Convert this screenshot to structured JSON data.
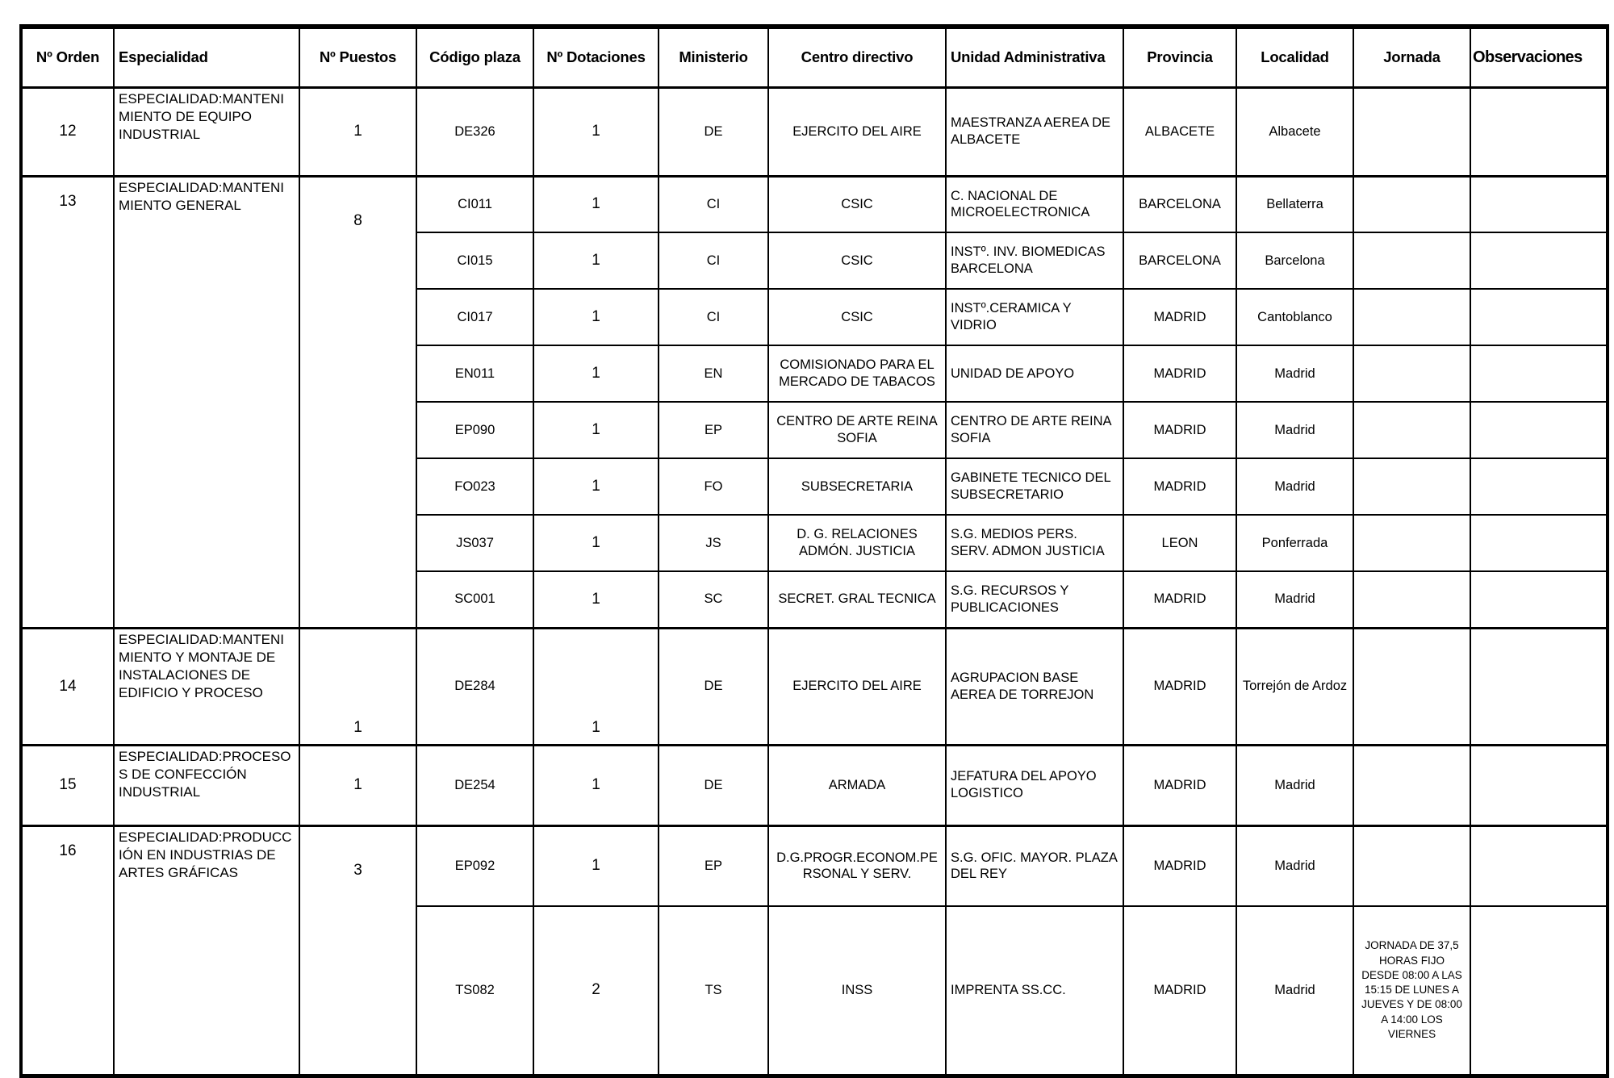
{
  "colors": {
    "border": "#000000",
    "text": "#000000",
    "background": "#ffffff"
  },
  "table": {
    "columns": [
      {
        "key": "orden",
        "label": "Nº Orden"
      },
      {
        "key": "especialidad",
        "label": "Especialidad"
      },
      {
        "key": "puestos",
        "label": "Nº Puestos"
      },
      {
        "key": "codigo",
        "label": "Código plaza"
      },
      {
        "key": "dotaciones",
        "label": "Nº Dotaciones"
      },
      {
        "key": "ministerio",
        "label": "Ministerio"
      },
      {
        "key": "centro",
        "label": "Centro directivo"
      },
      {
        "key": "unidad",
        "label": "Unidad Administrativa"
      },
      {
        "key": "provincia",
        "label": "Provincia"
      },
      {
        "key": "localidad",
        "label": "Localidad"
      },
      {
        "key": "jornada",
        "label": "Jornada"
      },
      {
        "key": "observaciones",
        "label": "Observaciones"
      }
    ],
    "groups": [
      {
        "orden": "12",
        "especialidad": "ESPECIALIDAD:MANTENIMIENTO DE EQUIPO INDUSTRIAL",
        "puestos": "1",
        "rows": [
          {
            "codigo": "DE326",
            "dotaciones": "1",
            "ministerio": "DE",
            "centro": "EJERCITO DEL AIRE",
            "unidad": "MAESTRANZA AEREA DE ALBACETE",
            "provincia": "ALBACETE",
            "localidad": "Albacete",
            "jornada": "",
            "observaciones": ""
          }
        ]
      },
      {
        "orden": "13",
        "especialidad": "ESPECIALIDAD:MANTENIMIENTO GENERAL",
        "puestos": "8",
        "rows": [
          {
            "codigo": "CI011",
            "dotaciones": "1",
            "ministerio": "CI",
            "centro": "CSIC",
            "unidad": "C. NACIONAL DE MICROELECTRONICA",
            "provincia": "BARCELONA",
            "localidad": "Bellaterra",
            "jornada": "",
            "observaciones": ""
          },
          {
            "codigo": "CI015",
            "dotaciones": "1",
            "ministerio": "CI",
            "centro": "CSIC",
            "unidad": "INSTº. INV. BIOMEDICAS BARCELONA",
            "provincia": "BARCELONA",
            "localidad": "Barcelona",
            "jornada": "",
            "observaciones": ""
          },
          {
            "codigo": "CI017",
            "dotaciones": "1",
            "ministerio": "CI",
            "centro": "CSIC",
            "unidad": "INSTº.CERAMICA Y VIDRIO",
            "provincia": "MADRID",
            "localidad": "Cantoblanco",
            "jornada": "",
            "observaciones": ""
          },
          {
            "codigo": "EN011",
            "dotaciones": "1",
            "ministerio": "EN",
            "centro": "COMISIONADO PARA EL MERCADO DE TABACOS",
            "unidad": "UNIDAD DE APOYO",
            "provincia": "MADRID",
            "localidad": "Madrid",
            "jornada": "",
            "observaciones": ""
          },
          {
            "codigo": "EP090",
            "dotaciones": "1",
            "ministerio": "EP",
            "centro": "CENTRO DE ARTE REINA SOFIA",
            "unidad": "CENTRO DE ARTE REINA SOFIA",
            "provincia": "MADRID",
            "localidad": "Madrid",
            "jornada": "",
            "observaciones": ""
          },
          {
            "codigo": "FO023",
            "dotaciones": "1",
            "ministerio": "FO",
            "centro": "SUBSECRETARIA",
            "unidad": "GABINETE TECNICO DEL SUBSECRETARIO",
            "provincia": "MADRID",
            "localidad": "Madrid",
            "jornada": "",
            "observaciones": ""
          },
          {
            "codigo": "JS037",
            "dotaciones": "1",
            "ministerio": "JS",
            "centro": "D. G. RELACIONES ADMÓN. JUSTICIA",
            "unidad": "S.G. MEDIOS PERS. SERV. ADMON JUSTICIA",
            "provincia": "LEON",
            "localidad": "Ponferrada",
            "jornada": "",
            "observaciones": ""
          },
          {
            "codigo": "SC001",
            "dotaciones": "1",
            "ministerio": "SC",
            "centro": "SECRET. GRAL TECNICA",
            "unidad": "S.G. RECURSOS Y PUBLICACIONES",
            "provincia": "MADRID",
            "localidad": "Madrid",
            "jornada": "",
            "observaciones": ""
          }
        ]
      },
      {
        "orden": "14",
        "especialidad": "ESPECIALIDAD:MANTENIMIENTO Y MONTAJE DE INSTALACIONES DE EDIFICIO Y PROCESO",
        "puestos": "1",
        "numbers_at_bottom": true,
        "rows": [
          {
            "codigo": "DE284",
            "dotaciones": "1",
            "ministerio": "DE",
            "centro": "EJERCITO DEL AIRE",
            "unidad": "AGRUPACION BASE AEREA DE TORREJON",
            "provincia": "MADRID",
            "localidad": "Torrejón de Ardoz",
            "jornada": "",
            "observaciones": ""
          }
        ]
      },
      {
        "orden": "15",
        "especialidad": "ESPECIALIDAD:PROCESOS DE CONFECCIÓN INDUSTRIAL",
        "puestos": "1",
        "rows": [
          {
            "codigo": "DE254",
            "dotaciones": "1",
            "ministerio": "DE",
            "centro": "ARMADA",
            "unidad": "JEFATURA DEL APOYO LOGISTICO",
            "provincia": "MADRID",
            "localidad": "Madrid",
            "jornada": "",
            "observaciones": ""
          }
        ]
      },
      {
        "orden": "16",
        "especialidad": "ESPECIALIDAD:PRODUCCIÓN EN INDUSTRIAS DE ARTES GRÁFICAS",
        "puestos": "3",
        "rows": [
          {
            "codigo": "EP092",
            "dotaciones": "1",
            "ministerio": "EP",
            "centro": "D.G.PROGR.ECONOM.PERSONAL Y SERV.",
            "unidad": "S.G. OFIC. MAYOR. PLAZA DEL REY",
            "provincia": "MADRID",
            "localidad": "Madrid",
            "jornada": "",
            "observaciones": ""
          },
          {
            "codigo": "TS082",
            "dotaciones": "2",
            "ministerio": "TS",
            "centro": "INSS",
            "unidad": "IMPRENTA SS.CC.",
            "provincia": "MADRID",
            "localidad": "Madrid",
            "jornada": "JORNADA DE 37,5 HORAS FIJO DESDE 08:00 A LAS 15:15 DE LUNES A JUEVES Y DE 08:00 A 14:00 LOS VIERNES",
            "observaciones": ""
          }
        ]
      }
    ]
  }
}
